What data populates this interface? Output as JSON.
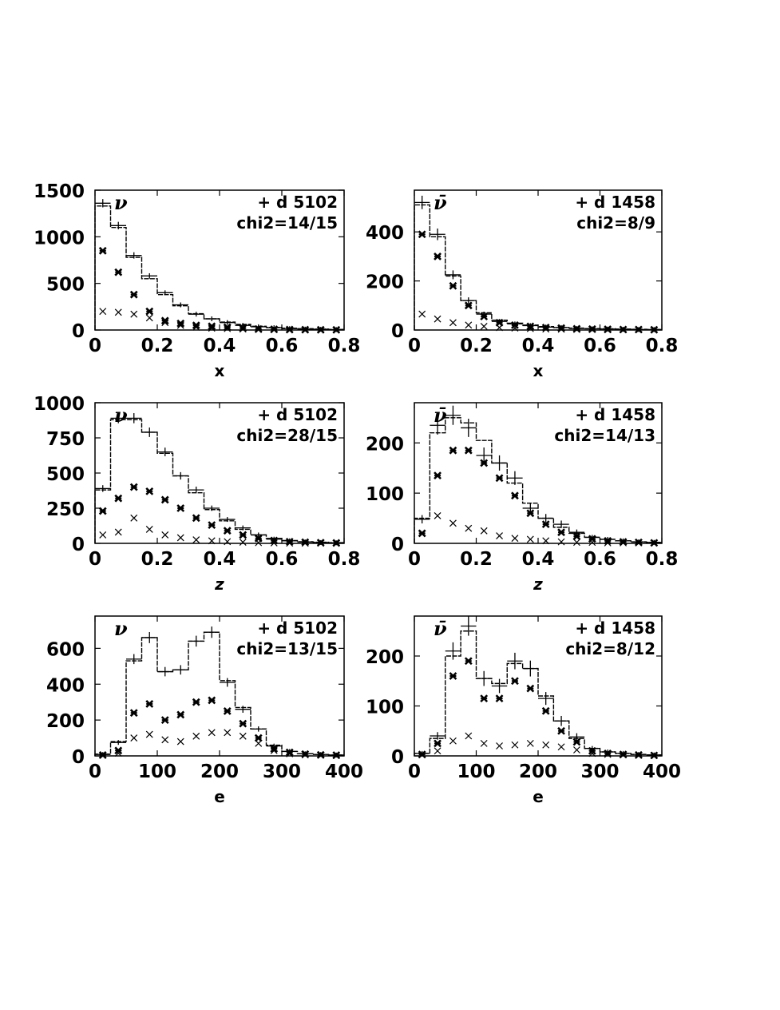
{
  "chart_data": [
    {
      "type": "histogram",
      "panel": "top-left",
      "particle": "ν",
      "legend_label": "+ d 5102",
      "chi2_label": "chi2=14/15",
      "xlabel": "x",
      "xlim": [
        0,
        0.8
      ],
      "ylim": [
        0,
        1500
      ],
      "xticks": [
        0,
        0.2,
        0.4,
        0.6,
        0.8
      ],
      "xtick_labels": [
        "0",
        "0.2",
        "0.4",
        "0.6",
        "0.8"
      ],
      "yticks": [
        0,
        500,
        1000,
        1500
      ],
      "ytick_labels": [
        "0",
        "500",
        "1000",
        "1500"
      ],
      "bin_edges": [
        0,
        0.05,
        0.1,
        0.15,
        0.2,
        0.25,
        0.3,
        0.35,
        0.4,
        0.45,
        0.5,
        0.55,
        0.6,
        0.65,
        0.7,
        0.75,
        0.8
      ],
      "histogram": [
        1330,
        1100,
        780,
        550,
        380,
        260,
        175,
        120,
        85,
        60,
        40,
        28,
        20,
        14,
        10,
        6
      ],
      "data_points": [
        1360,
        1120,
        800,
        580,
        400,
        270,
        170,
        120,
        80,
        50,
        35,
        25,
        15,
        10,
        8,
        5
      ],
      "series_star": [
        850,
        620,
        380,
        200,
        100,
        70,
        50,
        40,
        30,
        20,
        10,
        8,
        5,
        4,
        3,
        2
      ],
      "series_x": [
        200,
        190,
        170,
        130,
        80,
        50,
        30,
        20,
        15,
        10,
        6,
        4,
        3,
        2,
        1,
        1
      ]
    },
    {
      "type": "histogram",
      "panel": "top-right",
      "particle": "ν̄",
      "legend_label": "+ d 1458",
      "chi2_label": "chi2=8/9",
      "xlabel": "x",
      "xlim": [
        0,
        0.8
      ],
      "ylim": [
        0,
        570
      ],
      "xticks": [
        0,
        0.2,
        0.4,
        0.6,
        0.8
      ],
      "xtick_labels": [
        "0",
        "0.2",
        "0.4",
        "0.6",
        "0.8"
      ],
      "yticks": [
        0,
        200,
        400
      ],
      "ytick_labels": [
        "0",
        "200",
        "400"
      ],
      "bin_edges": [
        0,
        0.05,
        0.1,
        0.15,
        0.2,
        0.25,
        0.3,
        0.35,
        0.4,
        0.45,
        0.5,
        0.55,
        0.6,
        0.65,
        0.7,
        0.75,
        0.8
      ],
      "histogram": [
        510,
        380,
        220,
        120,
        70,
        40,
        28,
        20,
        14,
        10,
        8,
        6,
        5,
        4,
        3,
        2
      ],
      "data_points": [
        520,
        390,
        225,
        120,
        65,
        35,
        25,
        18,
        12,
        10,
        6,
        5,
        4,
        3,
        2,
        2
      ],
      "series_star": [
        390,
        300,
        180,
        100,
        55,
        30,
        20,
        15,
        10,
        8,
        5,
        4,
        3,
        2,
        2,
        1
      ],
      "series_x": [
        65,
        45,
        30,
        20,
        15,
        10,
        8,
        6,
        4,
        3,
        2,
        2,
        1,
        1,
        1,
        1
      ]
    },
    {
      "type": "histogram",
      "panel": "middle-left",
      "particle": "ν",
      "legend_label": "+ d 5102",
      "chi2_label": "chi2=28/15",
      "xlabel": "z",
      "xlim": [
        0,
        0.8
      ],
      "ylim": [
        0,
        1000
      ],
      "xticks": [
        0,
        0.2,
        0.4,
        0.6,
        0.8
      ],
      "xtick_labels": [
        "0",
        "0.2",
        "0.4",
        "0.6",
        "0.8"
      ],
      "yticks": [
        0,
        250,
        500,
        750,
        1000
      ],
      "ytick_labels": [
        "0",
        "250",
        "500",
        "750",
        "1000"
      ],
      "bin_edges": [
        0,
        0.05,
        0.1,
        0.15,
        0.2,
        0.25,
        0.3,
        0.35,
        0.4,
        0.45,
        0.5,
        0.55,
        0.6,
        0.65,
        0.7,
        0.75,
        0.8
      ],
      "histogram": [
        380,
        880,
        880,
        790,
        640,
        480,
        360,
        240,
        160,
        100,
        60,
        35,
        20,
        12,
        8,
        5
      ],
      "data_points": [
        390,
        890,
        890,
        790,
        650,
        480,
        380,
        250,
        170,
        110,
        60,
        30,
        18,
        10,
        6,
        4
      ],
      "series_star": [
        230,
        320,
        400,
        370,
        310,
        250,
        180,
        130,
        90,
        60,
        35,
        20,
        12,
        8,
        5,
        3
      ],
      "series_x": [
        60,
        80,
        180,
        100,
        60,
        40,
        25,
        18,
        12,
        8,
        5,
        3,
        2,
        1,
        1,
        1
      ]
    },
    {
      "type": "histogram",
      "panel": "middle-right",
      "particle": "ν̄",
      "legend_label": "+ d 1458",
      "chi2_label": "chi2=14/13",
      "xlabel": "z",
      "xlim": [
        0,
        0.8
      ],
      "ylim": [
        0,
        280
      ],
      "xticks": [
        0,
        0.2,
        0.4,
        0.6,
        0.8
      ],
      "xtick_labels": [
        "0",
        "0.2",
        "0.4",
        "0.6",
        "0.8"
      ],
      "yticks": [
        0,
        100,
        200
      ],
      "ytick_labels": [
        "0",
        "100",
        "200"
      ],
      "bin_edges": [
        0,
        0.05,
        0.1,
        0.15,
        0.2,
        0.25,
        0.3,
        0.35,
        0.4,
        0.45,
        0.5,
        0.55,
        0.6,
        0.65,
        0.7,
        0.75,
        0.8
      ],
      "histogram": [
        50,
        220,
        250,
        240,
        205,
        160,
        120,
        80,
        50,
        32,
        20,
        12,
        8,
        5,
        3,
        2
      ],
      "data_points": [
        48,
        235,
        255,
        230,
        175,
        160,
        130,
        70,
        50,
        38,
        22,
        12,
        8,
        5,
        3,
        2
      ],
      "series_star": [
        20,
        135,
        185,
        185,
        160,
        130,
        95,
        60,
        38,
        22,
        14,
        9,
        5,
        3,
        2,
        1
      ],
      "series_x": [
        20,
        55,
        40,
        30,
        25,
        15,
        10,
        8,
        5,
        3,
        2,
        2,
        1,
        1,
        1,
        1
      ]
    },
    {
      "type": "histogram",
      "panel": "bottom-left",
      "particle": "ν",
      "legend_label": "+ d 5102",
      "chi2_label": "chi2=13/15",
      "xlabel": "e",
      "xlim": [
        0,
        400
      ],
      "ylim": [
        0,
        780
      ],
      "xticks": [
        0,
        100,
        200,
        300,
        400
      ],
      "xtick_labels": [
        "0",
        "100",
        "200",
        "300",
        "400"
      ],
      "yticks": [
        0,
        200,
        400,
        600
      ],
      "ytick_labels": [
        "0",
        "200",
        "400",
        "600"
      ],
      "bin_edges": [
        0,
        25,
        50,
        75,
        100,
        125,
        150,
        175,
        200,
        225,
        250,
        275,
        300,
        325,
        350,
        375,
        400
      ],
      "histogram": [
        10,
        80,
        530,
        660,
        470,
        480,
        640,
        690,
        420,
        270,
        150,
        60,
        25,
        12,
        8,
        5
      ],
      "data_points": [
        8,
        75,
        540,
        660,
        470,
        480,
        640,
        690,
        410,
        260,
        150,
        55,
        25,
        12,
        8,
        5
      ],
      "series_star": [
        5,
        30,
        240,
        290,
        200,
        230,
        300,
        310,
        250,
        180,
        100,
        40,
        20,
        10,
        6,
        4
      ],
      "series_x": [
        3,
        15,
        100,
        120,
        90,
        80,
        110,
        130,
        130,
        110,
        70,
        30,
        12,
        6,
        4,
        2
      ]
    },
    {
      "type": "histogram",
      "panel": "bottom-right",
      "particle": "ν̄",
      "legend_label": "+ d 1458",
      "chi2_label": "chi2=8/12",
      "xlabel": "e",
      "xlim": [
        0,
        400
      ],
      "ylim": [
        0,
        280
      ],
      "xticks": [
        0,
        100,
        200,
        300,
        400
      ],
      "xtick_labels": [
        "0",
        "100",
        "200",
        "300",
        "400"
      ],
      "yticks": [
        0,
        100,
        200
      ],
      "ytick_labels": [
        "0",
        "100",
        "200"
      ],
      "bin_edges": [
        0,
        25,
        50,
        75,
        100,
        125,
        150,
        175,
        200,
        225,
        250,
        275,
        300,
        325,
        350,
        375,
        400
      ],
      "histogram": [
        5,
        35,
        200,
        250,
        155,
        145,
        185,
        175,
        120,
        70,
        35,
        15,
        8,
        5,
        3,
        2
      ],
      "data_points": [
        5,
        40,
        210,
        260,
        155,
        140,
        190,
        175,
        115,
        70,
        38,
        15,
        8,
        5,
        3,
        2
      ],
      "series_star": [
        3,
        25,
        160,
        190,
        115,
        115,
        150,
        135,
        90,
        50,
        28,
        10,
        5,
        3,
        2,
        1
      ],
      "series_x": [
        2,
        10,
        30,
        40,
        25,
        20,
        22,
        25,
        22,
        18,
        12,
        5,
        3,
        2,
        1,
        1
      ]
    }
  ]
}
